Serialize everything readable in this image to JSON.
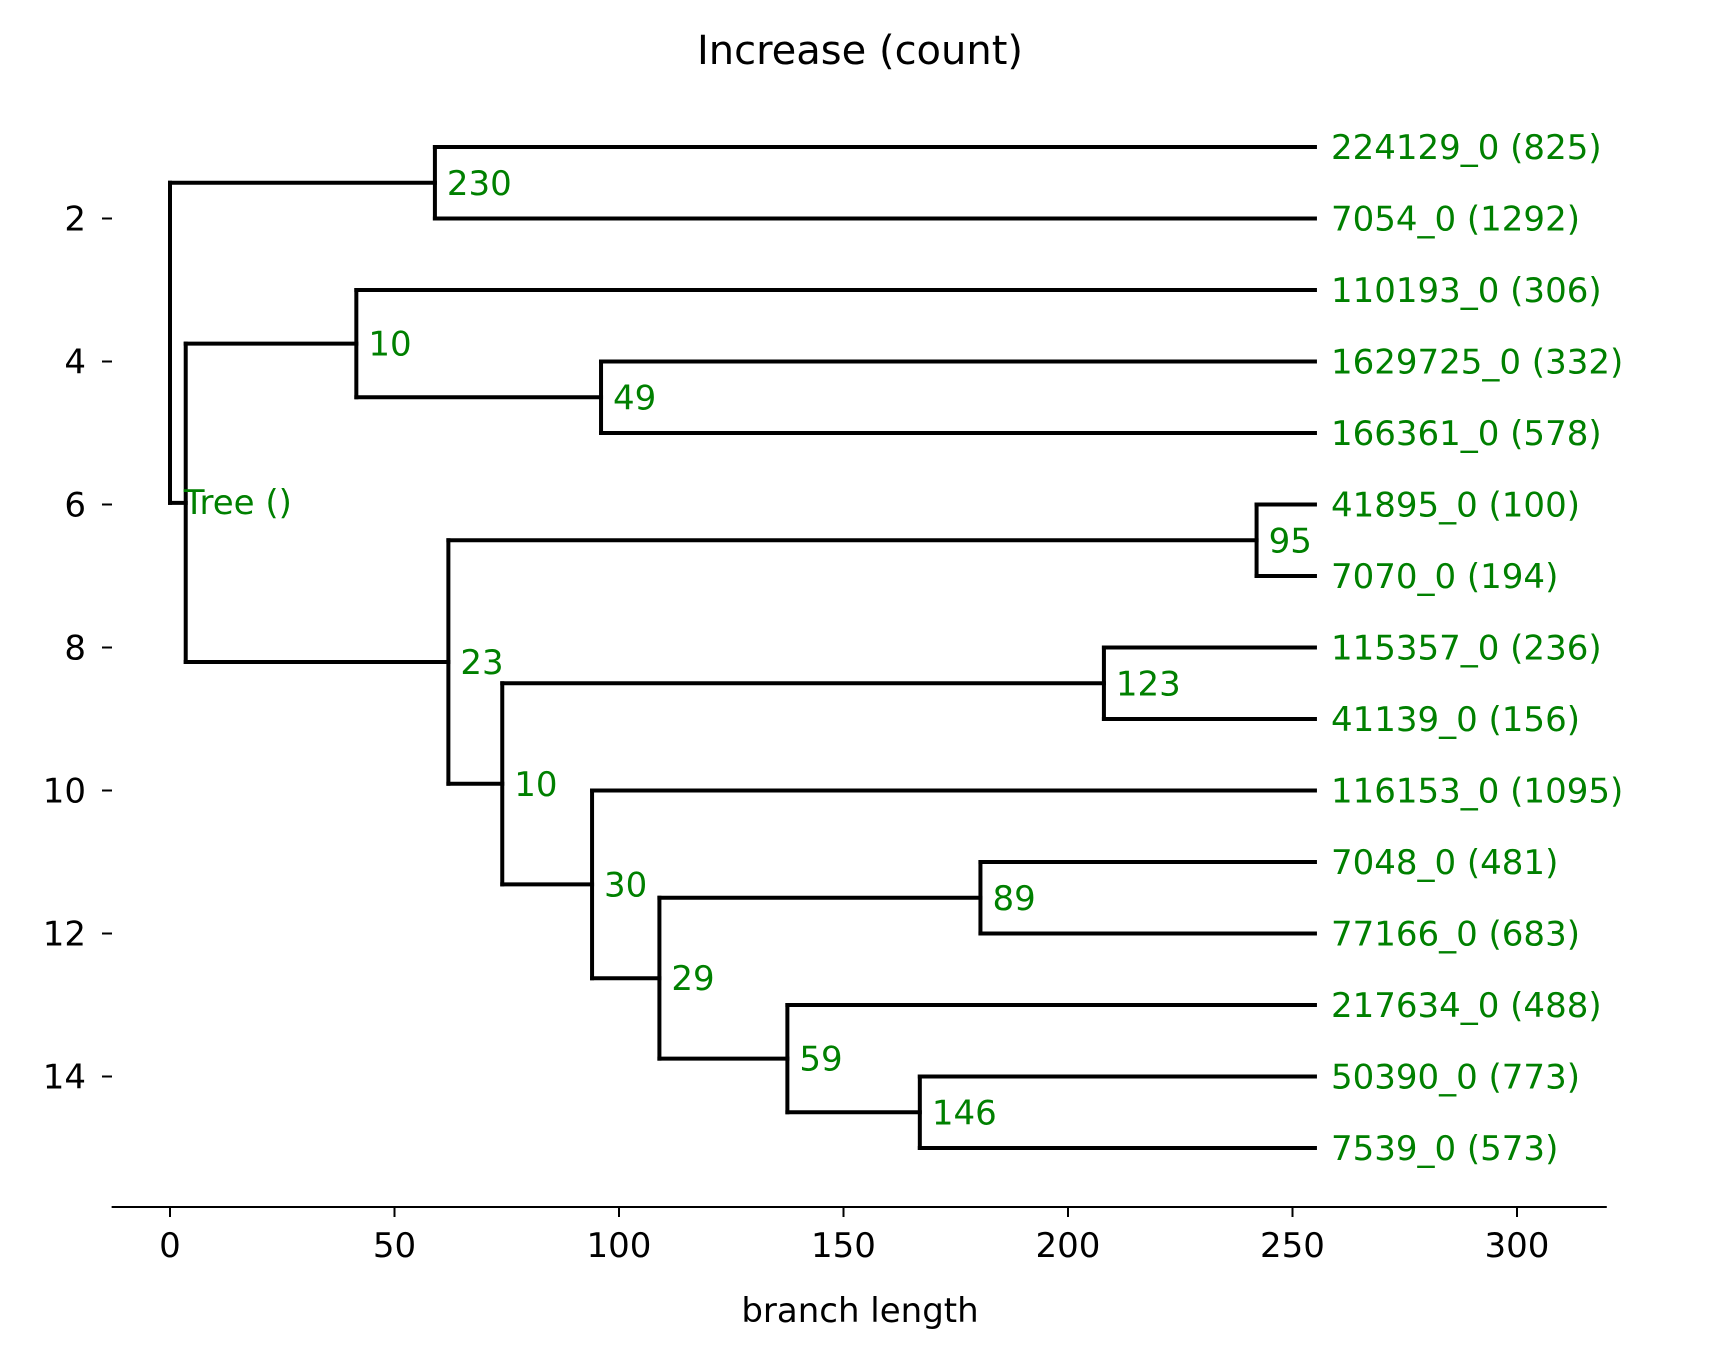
{
  "chart_data": {
    "type": "tree",
    "title": "Increase (count)",
    "xlabel": "branch length",
    "ylabel": "",
    "xlim": [
      -13,
      320
    ],
    "ylim": [
      15.8,
      0.2
    ],
    "x_ticks": [
      0,
      50,
      100,
      150,
      200,
      250,
      300
    ],
    "y_ticks": [
      2,
      4,
      6,
      8,
      10,
      12,
      14
    ],
    "grid": false,
    "colors": {
      "branch": "#000000",
      "label": "#008000",
      "axis": "#000000"
    },
    "root_label": "Tree ()",
    "leaves": [
      {
        "label": "224129_0 (825)",
        "y": 1,
        "x": 255
      },
      {
        "label": "7054_0 (1292)",
        "y": 2,
        "x": 255
      },
      {
        "label": "110193_0 (306)",
        "y": 3,
        "x": 255
      },
      {
        "label": "1629725_0 (332)",
        "y": 4,
        "x": 255
      },
      {
        "label": "166361_0 (578)",
        "y": 5,
        "x": 255
      },
      {
        "label": "41895_0 (100)",
        "y": 6,
        "x": 255
      },
      {
        "label": "7070_0 (194)",
        "y": 7,
        "x": 255
      },
      {
        "label": "115357_0 (236)",
        "y": 8,
        "x": 255
      },
      {
        "label": "41139_0 (156)",
        "y": 9,
        "x": 255
      },
      {
        "label": "116153_0 (1095)",
        "y": 10,
        "x": 255
      },
      {
        "label": "7048_0 (481)",
        "y": 11,
        "x": 255
      },
      {
        "label": "77166_0 (683)",
        "y": 12,
        "x": 255
      },
      {
        "label": "217634_0 (488)",
        "y": 13,
        "x": 255
      },
      {
        "label": "50390_0 (773)",
        "y": 14,
        "x": 255
      },
      {
        "label": "7539_0 (573)",
        "y": 15,
        "x": 255
      }
    ],
    "internal_nodes": [
      {
        "id": "root",
        "x": 0,
        "children": [
          "n230",
          "tree"
        ]
      },
      {
        "id": "n230",
        "label": "230",
        "x": 59,
        "children": [
          "L0",
          "L1"
        ]
      },
      {
        "id": "tree",
        "x": 3.5,
        "children": [
          "n10a",
          "n23"
        ]
      },
      {
        "id": "n10a",
        "label": "10",
        "x": 41.5,
        "children": [
          "L2",
          "n49"
        ]
      },
      {
        "id": "n49",
        "label": "49",
        "x": 96,
        "children": [
          "L3",
          "L4"
        ]
      },
      {
        "id": "n23",
        "label": "23",
        "x": 62,
        "children": [
          "n95",
          "n10b"
        ]
      },
      {
        "id": "n95",
        "label": "95",
        "x": 242,
        "children": [
          "L5",
          "L6"
        ]
      },
      {
        "id": "n10b",
        "label": "10",
        "x": 74,
        "children": [
          "n123",
          "n30"
        ]
      },
      {
        "id": "n123",
        "label": "123",
        "x": 208,
        "children": [
          "L7",
          "L8"
        ]
      },
      {
        "id": "n30",
        "label": "30",
        "x": 94,
        "children": [
          "L9",
          "n29"
        ]
      },
      {
        "id": "n29",
        "label": "29",
        "x": 109,
        "children": [
          "n89",
          "n59"
        ]
      },
      {
        "id": "n89",
        "label": "89",
        "x": 180.5,
        "children": [
          "L10",
          "L11"
        ]
      },
      {
        "id": "n59",
        "label": "59",
        "x": 137.5,
        "children": [
          "L12",
          "n146"
        ]
      },
      {
        "id": "n146",
        "label": "146",
        "x": 167,
        "children": [
          "L13",
          "L14"
        ]
      }
    ]
  }
}
